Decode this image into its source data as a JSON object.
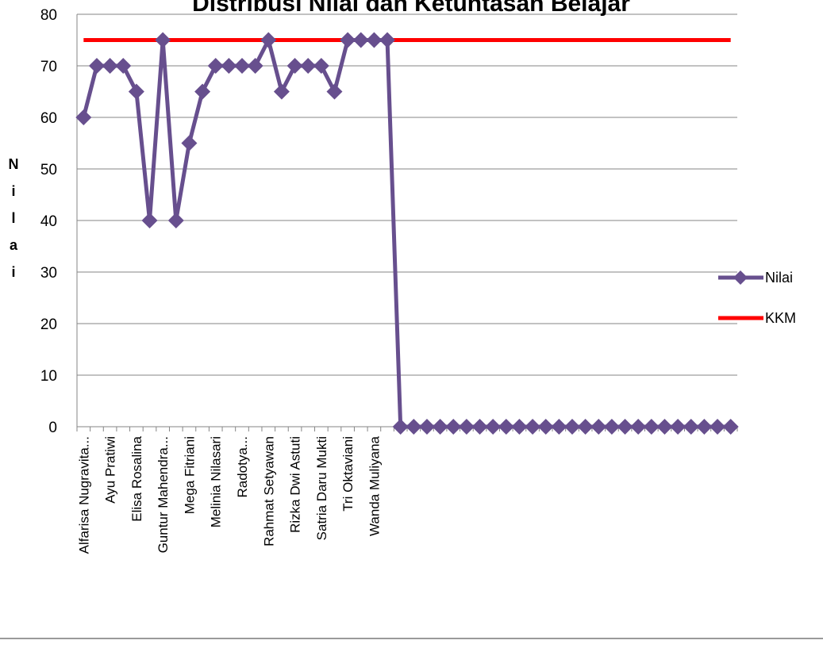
{
  "chart_data": {
    "type": "line",
    "title": "Distribusi Nilai dan Ketuntasan Belajar",
    "ylabel": "Nilai",
    "ylim": [
      0,
      80
    ],
    "yticks": [
      0,
      10,
      20,
      30,
      40,
      50,
      60,
      70,
      80
    ],
    "grid": true,
    "legend_position": "right",
    "category_labels": [
      {
        "index": 0,
        "text": "Alfarisa Nugravita..."
      },
      {
        "index": 2,
        "text": "Ayu Pratiwi"
      },
      {
        "index": 4,
        "text": "Elisa Rosalina"
      },
      {
        "index": 6,
        "text": "Guntur Mahendra..."
      },
      {
        "index": 8,
        "text": "Mega Fitriani"
      },
      {
        "index": 10,
        "text": "Melinia Nilasari"
      },
      {
        "index": 12,
        "text": "Radotya..."
      },
      {
        "index": 14,
        "text": "Rahmat Setyawan"
      },
      {
        "index": 16,
        "text": "Rizka Dwi Astuti"
      },
      {
        "index": 18,
        "text": "Satria Daru Mukti"
      },
      {
        "index": 20,
        "text": "Tri Oktaviani"
      },
      {
        "index": 22,
        "text": "Wanda Muliyana"
      }
    ],
    "series": [
      {
        "name": "Nilai",
        "color": "#674f8e",
        "marker": "diamond",
        "values": [
          60,
          70,
          70,
          70,
          65,
          40,
          75,
          40,
          55,
          65,
          70,
          70,
          70,
          70,
          75,
          65,
          70,
          70,
          70,
          65,
          75,
          75,
          75,
          75,
          0,
          0,
          0,
          0,
          0,
          0,
          0,
          0,
          0,
          0,
          0,
          0,
          0,
          0,
          0,
          0,
          0,
          0,
          0,
          0,
          0,
          0,
          0,
          0,
          0,
          0
        ]
      },
      {
        "name": "KKM",
        "color": "#ff0000",
        "marker": "none",
        "values": [
          75,
          75,
          75,
          75,
          75,
          75,
          75,
          75,
          75,
          75,
          75,
          75,
          75,
          75,
          75,
          75,
          75,
          75,
          75,
          75,
          75,
          75,
          75,
          75,
          75,
          75,
          75,
          75,
          75,
          75,
          75,
          75,
          75,
          75,
          75,
          75,
          75,
          75,
          75,
          75,
          75,
          75,
          75,
          75,
          75,
          75,
          75,
          75,
          75,
          75
        ]
      }
    ]
  }
}
